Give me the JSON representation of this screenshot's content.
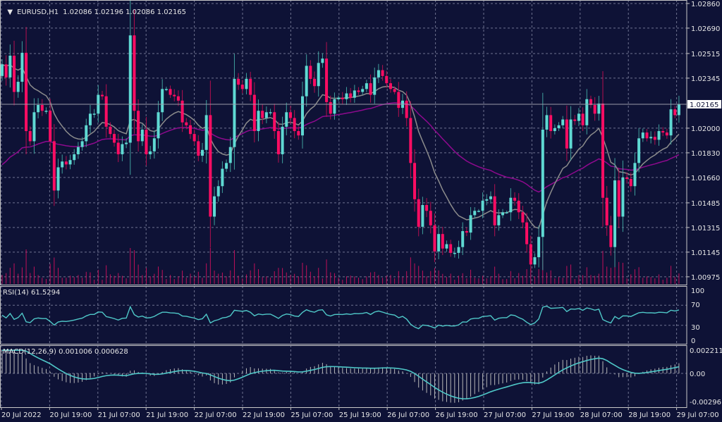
{
  "header": {
    "menu_icon": "triangle-down-icon",
    "symbol_label": "EURUSD,H1",
    "ohlc": "1.02086 1.02196 1.02086 1.02165"
  },
  "colors": {
    "background": "#0e1236",
    "grid": "#6e7290",
    "bull": "#5fd9d3",
    "bear": "#ff0d63",
    "fast_ma": "#8c8c8c",
    "slow_ma": "#8e0a8e",
    "rsi_line": "#4fc8c8",
    "macd_hist": "#b8b8b8",
    "macd_signal": "#4fc8c8",
    "axis_text": "#e6e6e6"
  },
  "chart_data": [
    {
      "type": "candlestick",
      "title": "EURUSD,H1",
      "first_open": 1.0236,
      "closes": [
        1.0244,
        1.0235,
        1.025,
        1.0225,
        1.0232,
        1.0252,
        1.0198,
        1.0191,
        1.0211,
        1.0216,
        1.0212,
        1.0212,
        1.0191,
        1.0157,
        1.0173,
        1.0177,
        1.0175,
        1.0178,
        1.0182,
        1.0187,
        1.0191,
        1.0202,
        1.021,
        1.021,
        1.0223,
        1.0222,
        1.0201,
        1.0196,
        1.019,
        1.0182,
        1.0189,
        1.019,
        1.0264,
        1.0212,
        1.0191,
        1.0199,
        1.0182,
        1.0184,
        1.0193,
        1.0211,
        1.0227,
        1.0227,
        1.0223,
        1.0222,
        1.0219,
        1.0204,
        1.0202,
        1.0196,
        1.0191,
        1.0181,
        1.0185,
        1.0209,
        1.0139,
        1.0153,
        1.016,
        1.0172,
        1.0176,
        1.0187,
        1.0234,
        1.023,
        1.0227,
        1.0234,
        1.0223,
        1.0198,
        1.0212,
        1.0207,
        1.0211,
        1.0211,
        1.0198,
        1.0182,
        1.0201,
        1.0211,
        1.0207,
        1.0198,
        1.0195,
        1.0222,
        1.0243,
        1.0234,
        1.0229,
        1.0245,
        1.0248,
        1.0218,
        1.021,
        1.022,
        1.0221,
        1.022,
        1.0224,
        1.0221,
        1.0226,
        1.0225,
        1.0227,
        1.0231,
        1.0223,
        1.0235,
        1.024,
        1.0236,
        1.0231,
        1.0227,
        1.0225,
        1.0214,
        1.0219,
        1.0207,
        1.0176,
        1.0151,
        1.0132,
        1.0147,
        1.0143,
        1.0133,
        1.0115,
        1.0127,
        1.0117,
        1.012,
        1.0114,
        1.0114,
        1.0118,
        1.0129,
        1.0128,
        1.014,
        1.0143,
        1.0143,
        1.015,
        1.0151,
        1.0153,
        1.0133,
        1.014,
        1.0142,
        1.0142,
        1.0152,
        1.015,
        1.0142,
        1.0135,
        1.012,
        1.0106,
        1.0111,
        1.0125,
        1.0199,
        1.0209,
        1.0198,
        1.02,
        1.0202,
        1.0206,
        1.0186,
        1.0206,
        1.0205,
        1.021,
        1.0202,
        1.022,
        1.0216,
        1.021,
        1.0217,
        1.0152,
        1.0133,
        1.0118,
        1.0164,
        1.0139,
        1.0166,
        1.0165,
        1.016,
        1.0176,
        1.0193,
        1.0197,
        1.0193,
        1.0194,
        1.0192,
        1.0198,
        1.0197,
        1.0195,
        1.0213,
        1.0209,
        1.02165
      ],
      "ylim": [
        1.00921,
        1.02884
      ],
      "y_ticks": [
        "1.02860",
        "1.02690",
        "1.02515",
        "1.02345",
        "1.02000",
        "1.01830",
        "1.01660",
        "1.01485",
        "1.01315",
        "1.01145",
        "1.00975"
      ],
      "current_price": "1.02165",
      "x_tick_labels": [
        "20 Jul 2022",
        "20 Jul 19:00",
        "21 Jul 07:00",
        "21 Jul 19:00",
        "22 Jul 07:00",
        "22 Jul 19:00",
        "25 Jul 07:00",
        "25 Jul 19:00",
        "26 Jul 07:00",
        "26 Jul 19:00",
        "27 Jul 07:00",
        "27 Jul 19:00",
        "28 Jul 07:00",
        "28 Jul 19:00",
        "29 Jul 07:00"
      ],
      "grid": true,
      "overlays": [
        "moving-average-fast",
        "moving-average-slow",
        "volume"
      ]
    },
    {
      "type": "line",
      "title": "RSI(14) 61.5294",
      "ylim": [
        0,
        100
      ],
      "y_ticks": [
        "100",
        "70",
        "30",
        "0"
      ],
      "levels": [
        70,
        30
      ]
    },
    {
      "type": "bar+line",
      "title": "MACD(12,26,9) 0.001006 0.000628",
      "ylim": [
        -0.00296,
        0.002211
      ],
      "y_ticks": [
        "0.002211",
        "0.00",
        "-0.00296"
      ]
    }
  ]
}
